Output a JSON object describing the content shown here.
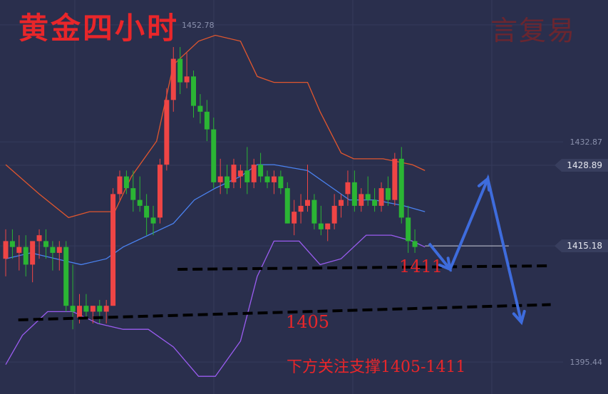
{
  "title": "黄金四小时",
  "brand": "言复易",
  "annotations": {
    "support_1411": "1411",
    "support_1405": "1405",
    "note": "下方关注支撑1405-1411"
  },
  "chart_data": {
    "type": "candlestick",
    "y_ticks": [
      {
        "value": 1452.78,
        "label": "1452.78"
      },
      {
        "value": 1432.87,
        "label": "1432.87"
      },
      {
        "value": 1395.44,
        "label": "1395.44"
      }
    ],
    "price_tags": [
      {
        "value": 1428.89,
        "label": "1428.89"
      },
      {
        "value": 1415.18,
        "label": "1415.18"
      }
    ],
    "ylim": [
      1390,
      1457
    ],
    "x_domain": [
      0,
      110
    ],
    "colors": {
      "up": "#ef4545",
      "down": "#2bb534",
      "upper_band": "#e0562e",
      "middle_band": "#4a82f0",
      "lower_band": "#9a5cf0",
      "arrow": "#3e6cdd",
      "grid": "#353b5c"
    },
    "candles": [
      {
        "o": 1413,
        "h": 1418,
        "l": 1410,
        "c": 1416
      },
      {
        "o": 1416,
        "h": 1418,
        "l": 1413,
        "c": 1415
      },
      {
        "o": 1414,
        "h": 1417,
        "l": 1411,
        "c": 1415
      },
      {
        "o": 1415,
        "h": 1417,
        "l": 1410,
        "c": 1412
      },
      {
        "o": 1412,
        "h": 1416,
        "l": 1409,
        "c": 1416
      },
      {
        "o": 1416,
        "h": 1418,
        "l": 1413,
        "c": 1417
      },
      {
        "o": 1416,
        "h": 1418,
        "l": 1413,
        "c": 1415
      },
      {
        "o": 1415,
        "h": 1416,
        "l": 1411,
        "c": 1414
      },
      {
        "o": 1414,
        "h": 1416,
        "l": 1411,
        "c": 1415
      },
      {
        "o": 1415,
        "h": 1416,
        "l": 1404,
        "c": 1405
      },
      {
        "o": 1405,
        "h": 1412,
        "l": 1401,
        "c": 1404
      },
      {
        "o": 1403,
        "h": 1407,
        "l": 1402,
        "c": 1405
      },
      {
        "o": 1405,
        "h": 1407,
        "l": 1403,
        "c": 1404
      },
      {
        "o": 1404,
        "h": 1405,
        "l": 1402,
        "c": 1405
      },
      {
        "o": 1405,
        "h": 1406,
        "l": 1402,
        "c": 1404
      },
      {
        "o": 1404,
        "h": 1406,
        "l": 1402,
        "c": 1405
      },
      {
        "o": 1405,
        "h": 1425,
        "l": 1405,
        "c": 1424
      },
      {
        "o": 1424,
        "h": 1428,
        "l": 1423,
        "c": 1427
      },
      {
        "o": 1427,
        "h": 1428,
        "l": 1424,
        "c": 1425
      },
      {
        "o": 1425,
        "h": 1428,
        "l": 1421,
        "c": 1423
      },
      {
        "o": 1423,
        "h": 1427,
        "l": 1421,
        "c": 1422
      },
      {
        "o": 1422,
        "h": 1424,
        "l": 1417,
        "c": 1420
      },
      {
        "o": 1420,
        "h": 1422,
        "l": 1417,
        "c": 1419
      },
      {
        "o": 1420,
        "h": 1430,
        "l": 1419,
        "c": 1429
      },
      {
        "o": 1429,
        "h": 1442,
        "l": 1428,
        "c": 1440
      },
      {
        "o": 1440,
        "h": 1449,
        "l": 1438,
        "c": 1447
      },
      {
        "o": 1447,
        "h": 1449,
        "l": 1441,
        "c": 1443
      },
      {
        "o": 1443,
        "h": 1448,
        "l": 1442,
        "c": 1444
      },
      {
        "o": 1444,
        "h": 1445,
        "l": 1437,
        "c": 1439
      },
      {
        "o": 1439,
        "h": 1441,
        "l": 1436,
        "c": 1438
      },
      {
        "o": 1438,
        "h": 1440,
        "l": 1433,
        "c": 1435
      },
      {
        "o": 1435,
        "h": 1437,
        "l": 1425,
        "c": 1426
      },
      {
        "o": 1426,
        "h": 1430,
        "l": 1424,
        "c": 1427
      },
      {
        "o": 1427,
        "h": 1429,
        "l": 1424,
        "c": 1425
      },
      {
        "o": 1426,
        "h": 1430,
        "l": 1425,
        "c": 1429
      },
      {
        "o": 1427,
        "h": 1429,
        "l": 1425,
        "c": 1428
      },
      {
        "o": 1428,
        "h": 1432,
        "l": 1424,
        "c": 1426
      },
      {
        "o": 1426,
        "h": 1430,
        "l": 1425,
        "c": 1429
      },
      {
        "o": 1429,
        "h": 1431,
        "l": 1426,
        "c": 1427
      },
      {
        "o": 1427,
        "h": 1428,
        "l": 1425,
        "c": 1426
      },
      {
        "o": 1426,
        "h": 1428,
        "l": 1424,
        "c": 1427
      },
      {
        "o": 1427,
        "h": 1428,
        "l": 1424,
        "c": 1425
      },
      {
        "o": 1425,
        "h": 1426,
        "l": 1419,
        "c": 1419
      },
      {
        "o": 1419,
        "h": 1423,
        "l": 1417,
        "c": 1421
      },
      {
        "o": 1421,
        "h": 1424,
        "l": 1419,
        "c": 1422
      },
      {
        "o": 1422,
        "h": 1429,
        "l": 1421,
        "c": 1423
      },
      {
        "o": 1423,
        "h": 1424,
        "l": 1418,
        "c": 1419
      },
      {
        "o": 1419,
        "h": 1422,
        "l": 1417,
        "c": 1418
      },
      {
        "o": 1418,
        "h": 1419,
        "l": 1416,
        "c": 1419
      },
      {
        "o": 1419,
        "h": 1424,
        "l": 1418,
        "c": 1422
      },
      {
        "o": 1422,
        "h": 1424,
        "l": 1420,
        "c": 1423
      },
      {
        "o": 1424,
        "h": 1428,
        "l": 1422,
        "c": 1426
      },
      {
        "o": 1426,
        "h": 1428,
        "l": 1421,
        "c": 1422
      },
      {
        "o": 1422,
        "h": 1425,
        "l": 1421,
        "c": 1424
      },
      {
        "o": 1424,
        "h": 1427,
        "l": 1422,
        "c": 1423
      },
      {
        "o": 1423,
        "h": 1425,
        "l": 1421,
        "c": 1422
      },
      {
        "o": 1422,
        "h": 1426,
        "l": 1421,
        "c": 1425
      },
      {
        "o": 1425,
        "h": 1427,
        "l": 1422,
        "c": 1423
      },
      {
        "o": 1423,
        "h": 1431,
        "l": 1422,
        "c": 1430
      },
      {
        "o": 1430,
        "h": 1432,
        "l": 1419,
        "c": 1420
      },
      {
        "o": 1420,
        "h": 1422,
        "l": 1414,
        "c": 1416
      },
      {
        "o": 1416,
        "h": 1418,
        "l": 1414,
        "c": 1415
      }
    ],
    "upper_band": [
      [
        0,
        1429
      ],
      [
        8,
        1424
      ],
      [
        15,
        1420
      ],
      [
        20,
        1421
      ],
      [
        26,
        1421
      ],
      [
        30,
        1427
      ],
      [
        36,
        1433
      ],
      [
        40,
        1446
      ],
      [
        46,
        1450
      ],
      [
        50,
        1451
      ],
      [
        56,
        1450
      ],
      [
        60,
        1444
      ],
      [
        64,
        1443
      ],
      [
        72,
        1443
      ],
      [
        75,
        1438
      ],
      [
        80,
        1431
      ],
      [
        83,
        1430
      ],
      [
        90,
        1430
      ],
      [
        97,
        1429
      ],
      [
        100,
        1428
      ]
    ],
    "middle_band": [
      [
        0,
        1413
      ],
      [
        6,
        1414
      ],
      [
        12,
        1413
      ],
      [
        18,
        1412
      ],
      [
        24,
        1413
      ],
      [
        28,
        1415
      ],
      [
        34,
        1417
      ],
      [
        40,
        1419
      ],
      [
        45,
        1423
      ],
      [
        50,
        1425
      ],
      [
        56,
        1427
      ],
      [
        60,
        1429
      ],
      [
        64,
        1429
      ],
      [
        72,
        1428
      ],
      [
        76,
        1426
      ],
      [
        82,
        1423
      ],
      [
        88,
        1423
      ],
      [
        95,
        1422
      ],
      [
        100,
        1421
      ]
    ],
    "lower_band": [
      [
        0,
        1395
      ],
      [
        4,
        1400
      ],
      [
        10,
        1404
      ],
      [
        16,
        1404
      ],
      [
        22,
        1402
      ],
      [
        28,
        1401
      ],
      [
        34,
        1401
      ],
      [
        40,
        1398
      ],
      [
        46,
        1393
      ],
      [
        50,
        1393
      ],
      [
        56,
        1399
      ],
      [
        60,
        1410
      ],
      [
        64,
        1416
      ],
      [
        70,
        1416
      ],
      [
        75,
        1412
      ],
      [
        80,
        1413
      ],
      [
        86,
        1417
      ],
      [
        92,
        1417
      ],
      [
        97,
        1416
      ],
      [
        100,
        1415
      ]
    ],
    "support_lines": [
      {
        "x1": 41,
        "y1": 1411.2,
        "x2": 130,
        "y2": 1411.8
      },
      {
        "x1": 3,
        "y1": 1402.6,
        "x2": 130,
        "y2": 1405.2
      }
    ],
    "projection_path": [
      [
        101,
        1415.6
      ],
      [
        106,
        1411.2
      ],
      [
        115,
        1426.6
      ],
      [
        123,
        1402.2
      ]
    ],
    "price_line": [
      [
        100,
        1415.18
      ],
      [
        120,
        1415.18
      ]
    ]
  }
}
